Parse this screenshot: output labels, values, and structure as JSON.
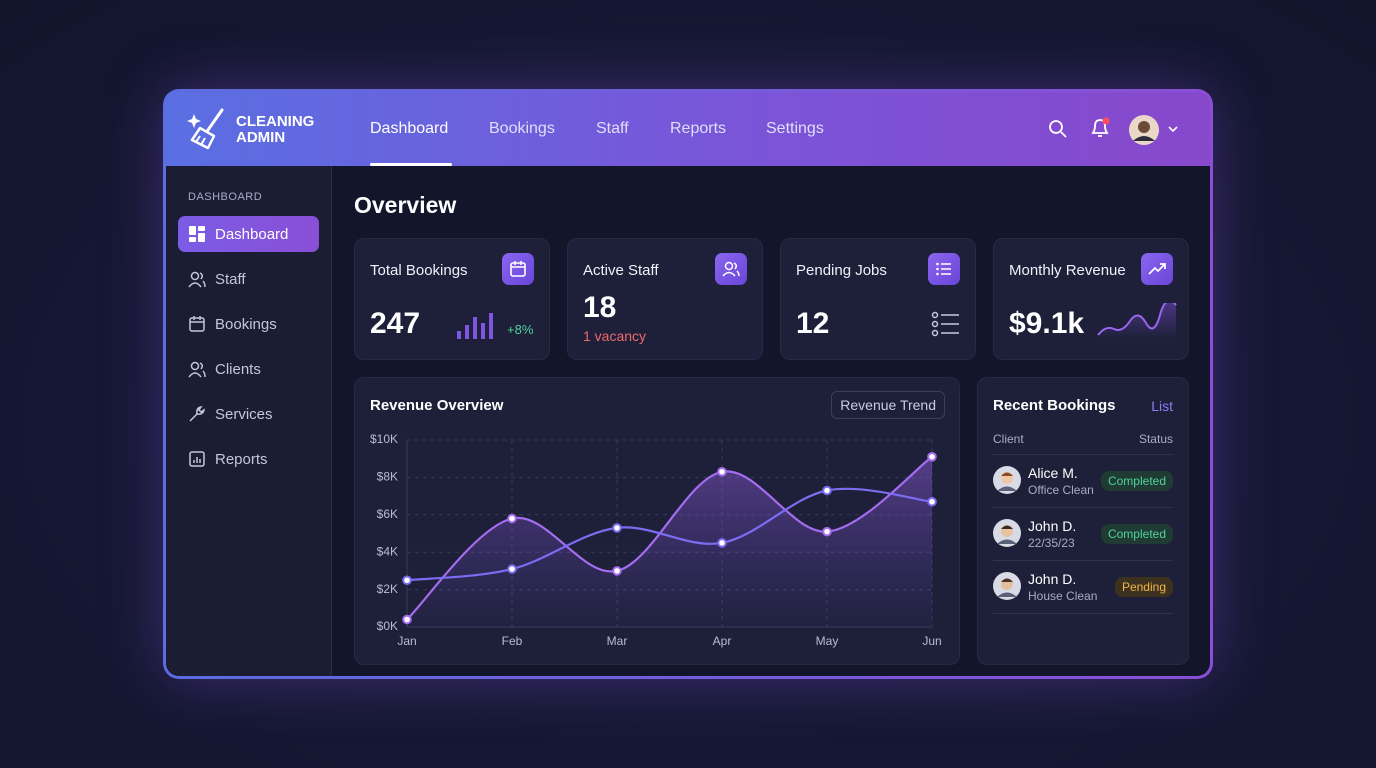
{
  "brand": {
    "line1": "CLEANING",
    "line2": "ADMIN"
  },
  "nav": {
    "items": [
      "Dashboard",
      "Bookings",
      "Staff",
      "Reports",
      "Settings"
    ],
    "active": 0
  },
  "sidebar": {
    "section": "DASHBOARD",
    "items": [
      "Dashboard",
      "Staff",
      "Bookings",
      "Clients",
      "Services",
      "Reports"
    ],
    "active": 0
  },
  "page_title": "Overview",
  "stats": [
    {
      "title": "Total Bookings",
      "value": "247",
      "change": "+8%"
    },
    {
      "title": "Active Staff",
      "value": "18",
      "note": "1 vacancy"
    },
    {
      "title": "Pending Jobs",
      "value": "12"
    },
    {
      "title": "Monthly Revenue",
      "value": "$9.1k"
    }
  ],
  "chart_data": {
    "type": "line",
    "title": "Revenue Overview",
    "button": "Revenue Trend",
    "categories": [
      "Jan",
      "Feb",
      "Mar",
      "Apr",
      "May",
      "Jun"
    ],
    "series": [
      {
        "color": "#a56cf0",
        "values": [
          0.4,
          5.8,
          3.0,
          8.3,
          5.1,
          9.1
        ]
      },
      {
        "color": "#7c6cf2",
        "values": [
          2.5,
          3.1,
          5.3,
          4.5,
          7.3,
          6.7
        ]
      }
    ],
    "ylim": [
      0,
      10
    ],
    "yticks": [
      {
        "value": 0,
        "label": "$0K"
      },
      {
        "value": 2,
        "label": "$2K"
      },
      {
        "value": 4,
        "label": "$4K"
      },
      {
        "value": 6,
        "label": "$6K"
      },
      {
        "value": 8,
        "label": "$8K"
      },
      {
        "value": 10,
        "label": "$10K"
      }
    ],
    "grid": true
  },
  "recent": {
    "title": "Recent Bookings",
    "link": "List",
    "columns": [
      "Client",
      "Status"
    ],
    "rows": [
      {
        "name": "Alice M.",
        "detail": "Office Clean",
        "status": "Completed"
      },
      {
        "name": "John D.",
        "detail": "22/35/23",
        "status": "Completed"
      },
      {
        "name": "John D.",
        "detail": "House Clean",
        "status": "Pending"
      }
    ]
  }
}
